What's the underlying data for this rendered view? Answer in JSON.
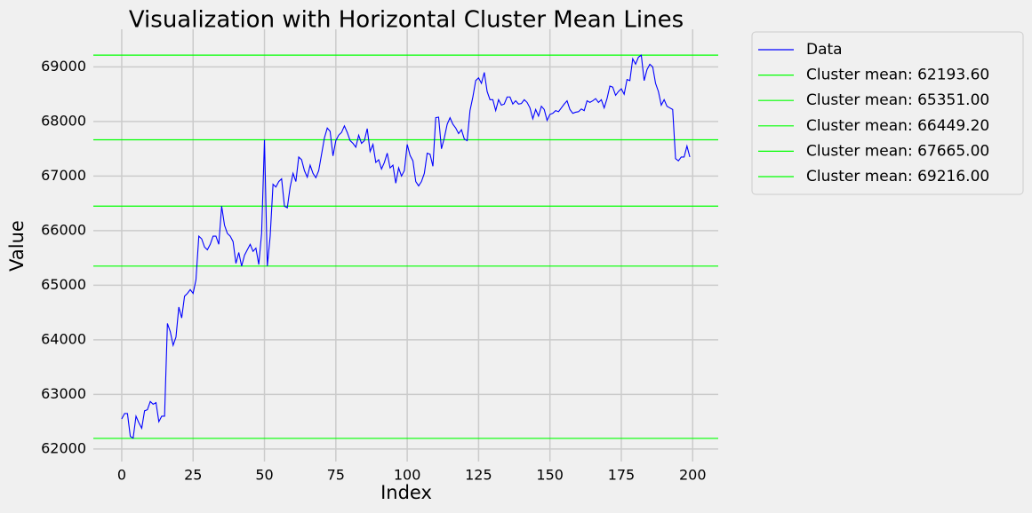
{
  "chart_data": {
    "type": "line",
    "title": "Visualization with Horizontal Cluster Mean Lines",
    "x_label": "Index",
    "y_label": "Value",
    "x": [
      0,
      1,
      2,
      3,
      4,
      5,
      6,
      7,
      8,
      9,
      10,
      11,
      12,
      13,
      14,
      15,
      16,
      17,
      18,
      19,
      20,
      21,
      22,
      23,
      24,
      25,
      26,
      27,
      28,
      29,
      30,
      31,
      32,
      33,
      34,
      35,
      36,
      37,
      38,
      39,
      40,
      41,
      42,
      43,
      44,
      45,
      46,
      47,
      48,
      49,
      50,
      51,
      52,
      53,
      54,
      55,
      56,
      57,
      58,
      59,
      60,
      61,
      62,
      63,
      64,
      65,
      66,
      67,
      68,
      69,
      70,
      71,
      72,
      73,
      74,
      75,
      76,
      77,
      78,
      79,
      80,
      81,
      82,
      83,
      84,
      85,
      86,
      87,
      88,
      89,
      90,
      91,
      92,
      93,
      94,
      95,
      96,
      97,
      98,
      99,
      100,
      101,
      102,
      103,
      104,
      105,
      106,
      107,
      108,
      109,
      110,
      111,
      112,
      113,
      114,
      115,
      116,
      117,
      118,
      119,
      120,
      121,
      122,
      123,
      124,
      125,
      126,
      127,
      128,
      129,
      130,
      131,
      132,
      133,
      134,
      135,
      136,
      137,
      138,
      139,
      140,
      141,
      142,
      143,
      144,
      145,
      146,
      147,
      148,
      149,
      150,
      151,
      152,
      153,
      154,
      155,
      156,
      157,
      158,
      159,
      160,
      161,
      162,
      163,
      164,
      165,
      166,
      167,
      168,
      169,
      170,
      171,
      172,
      173,
      174,
      175,
      176,
      177,
      178,
      179,
      180,
      181,
      182,
      183,
      184,
      185,
      186,
      187,
      188,
      189,
      190,
      191,
      192,
      193,
      194,
      195,
      196,
      197,
      198,
      199
    ],
    "series": [
      {
        "name": "Data",
        "color": "#0000ff",
        "values": [
          62550,
          62650,
          62650,
          62230,
          62200,
          62600,
          62480,
          62380,
          62700,
          62720,
          62870,
          62820,
          62850,
          62500,
          62600,
          62600,
          64300,
          64150,
          63900,
          64050,
          64600,
          64400,
          64800,
          64850,
          64920,
          64850,
          65100,
          65900,
          65850,
          65700,
          65650,
          65750,
          65900,
          65900,
          65750,
          66450,
          66100,
          65950,
          65900,
          65800,
          65400,
          65600,
          65350,
          65550,
          65650,
          65750,
          65620,
          65680,
          65380,
          65950,
          67665,
          65351,
          65900,
          66850,
          66800,
          66900,
          66950,
          66450,
          66420,
          66800,
          67050,
          66900,
          67350,
          67300,
          67100,
          66980,
          67200,
          67050,
          66970,
          67100,
          67400,
          67700,
          67880,
          67820,
          67370,
          67650,
          67750,
          67800,
          67920,
          67800,
          67650,
          67600,
          67530,
          67750,
          67600,
          67650,
          67870,
          67450,
          67580,
          67250,
          67300,
          67130,
          67250,
          67420,
          67150,
          67200,
          66870,
          67150,
          67000,
          67100,
          67580,
          67380,
          67280,
          66900,
          66820,
          66900,
          67050,
          67420,
          67400,
          67180,
          68070,
          68080,
          67500,
          67700,
          67950,
          68070,
          67950,
          67880,
          67780,
          67850,
          67680,
          67650,
          68200,
          68450,
          68750,
          68800,
          68700,
          68900,
          68550,
          68400,
          68400,
          68200,
          68400,
          68300,
          68320,
          68450,
          68450,
          68320,
          68380,
          68320,
          68330,
          68400,
          68350,
          68250,
          68050,
          68220,
          68100,
          68280,
          68220,
          68020,
          68130,
          68150,
          68200,
          68180,
          68250,
          68320,
          68380,
          68220,
          68150,
          68170,
          68180,
          68230,
          68200,
          68380,
          68350,
          68380,
          68420,
          68350,
          68400,
          68250,
          68420,
          68650,
          68630,
          68480,
          68550,
          68600,
          68500,
          68770,
          68750,
          69150,
          69050,
          69180,
          69216,
          68750,
          68950,
          69050,
          69000,
          68700,
          68550,
          68300,
          68400,
          68280,
          68250,
          68220,
          67320,
          67280,
          67350,
          67350,
          67550,
          67350
        ]
      }
    ],
    "hlines": [
      {
        "name": "Cluster mean: 62193.60",
        "value": 62193.6,
        "color": "#00ff00"
      },
      {
        "name": "Cluster mean: 65351.00",
        "value": 65351.0,
        "color": "#00ff00"
      },
      {
        "name": "Cluster mean: 66449.20",
        "value": 66449.2,
        "color": "#00ff00"
      },
      {
        "name": "Cluster mean: 67665.00",
        "value": 67665.0,
        "color": "#00ff00"
      },
      {
        "name": "Cluster mean: 69216.00",
        "value": 69216.0,
        "color": "#00ff00"
      }
    ],
    "xlim": [
      -9.95,
      208.95
    ],
    "ylim": [
      61770,
      69690
    ],
    "xticks": [
      0,
      25,
      50,
      75,
      100,
      125,
      150,
      175,
      200
    ],
    "yticks": [
      62000,
      63000,
      64000,
      65000,
      66000,
      67000,
      68000,
      69000
    ],
    "grid": true,
    "legend": "outside"
  }
}
